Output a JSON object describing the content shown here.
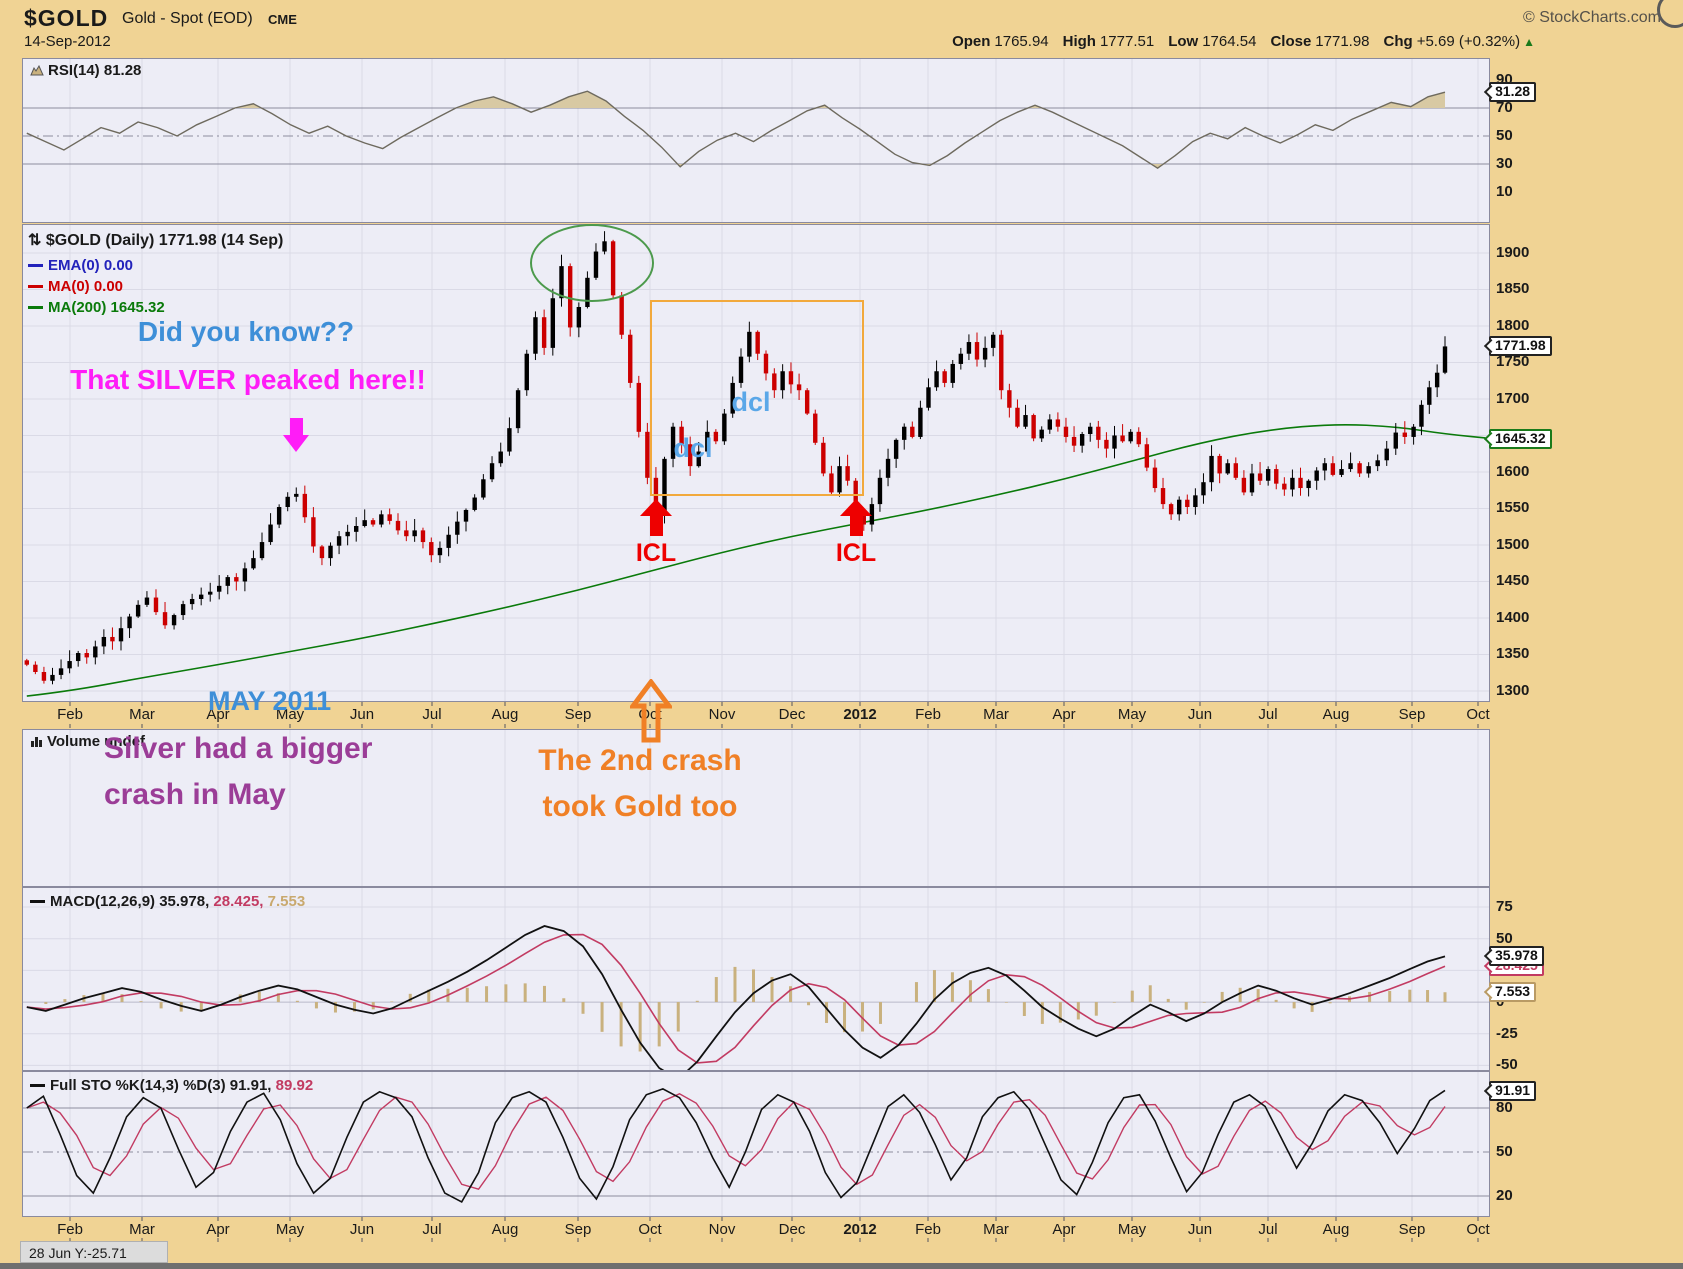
{
  "header": {
    "symbol": "$GOLD",
    "name": "Gold - Spot (EOD)",
    "exchange": "CME",
    "credit": "© StockCharts.com",
    "date": "14-Sep-2012",
    "quote": {
      "open_label": "Open",
      "open": "1765.94",
      "high_label": "High",
      "high": "1777.51",
      "low_label": "Low",
      "low": "1764.54",
      "close_label": "Close",
      "close": "1771.98",
      "chg_label": "Chg",
      "chg": "+5.69 (+0.32%)",
      "arrow": "▲"
    }
  },
  "x_axis": {
    "labels": [
      "Feb",
      "Mar",
      "Apr",
      "May",
      "Jun",
      "Jul",
      "Aug",
      "Sep",
      "Oct",
      "Nov",
      "Dec",
      "2012",
      "Feb",
      "Mar",
      "Apr",
      "May",
      "Jun",
      "Jul",
      "Aug",
      "Sep",
      "Oct"
    ],
    "bold_label": "2012"
  },
  "volume": {
    "label": "Volume undef"
  },
  "status_bar": {
    "text": "28 Jun Y:-25.71"
  },
  "annotations": {
    "did_you_know": "Did you know??",
    "silver_peaked": "That SILVER peaked here!!",
    "dcl": "dcl",
    "icl": "ICL",
    "may_2011": "MAY 2011",
    "silver_line1": "Silver had a bigger",
    "silver_line2": "crash in May",
    "crash_line1": "The 2nd crash",
    "crash_line2": "took Gold too"
  },
  "colors": {
    "page_bg": "#F0D394",
    "panel_bg": "#EDEDF6",
    "border": "#8A8A9E",
    "grid": "#DADAE6",
    "grid_strong": "#8D8D9E",
    "up": "#000000",
    "down": "#CC0000",
    "ma200": "#0A7A0A",
    "ema_blue": "#2222BB",
    "ma_red": "#CC0000",
    "rsi_line": "#6E6A5E",
    "rsi_fill": "#D8C9A3",
    "macd_line": "#111111",
    "macd_signal": "#C23B62",
    "macd_hist": "#C9B17E",
    "sto_k": "#111111",
    "sto_d": "#C23B62",
    "annotation_blue": "#3E8FD8",
    "annotation_magenta": "#FF1CF7",
    "annotation_purple": "#9B3D97",
    "annotation_orange": "#F08026",
    "annotation_red": "#EE0000",
    "box_orange": "#F2A93C",
    "ellipse_green": "#4C9A4C",
    "chg_green": "#1A7A1A"
  },
  "chart_data": [
    {
      "id": "rsi",
      "type": "line",
      "label": "RSI(14) 81.28",
      "ylim": [
        -12.1,
        105.7
      ],
      "x_range": [
        -0.6,
        19.5
      ],
      "gridlines": [
        {
          "v": 70,
          "style": "solid"
        },
        {
          "v": 50,
          "style": "dashdot"
        },
        {
          "v": 30,
          "style": "solid"
        }
      ],
      "axis_ticks": [
        90,
        70,
        50,
        30,
        10
      ],
      "overbought": 70,
      "oversold": 30,
      "callouts": [
        {
          "text": "81.28",
          "value": 81.28,
          "border": "#222222"
        }
      ],
      "values": [
        52,
        46,
        40,
        48,
        56,
        52,
        60,
        56,
        50,
        58,
        64,
        70,
        73,
        66,
        58,
        52,
        57,
        50,
        45,
        41,
        49,
        56,
        63,
        70,
        75,
        78,
        73,
        67,
        72,
        78,
        82,
        75,
        64,
        54,
        42,
        28,
        39,
        47,
        52,
        46,
        54,
        61,
        68,
        72,
        63,
        55,
        46,
        37,
        31,
        29,
        36,
        45,
        53,
        61,
        67,
        72,
        67,
        61,
        55,
        49,
        43,
        35,
        27,
        36,
        46,
        52,
        48,
        56,
        50,
        45,
        51,
        58,
        54,
        62,
        68,
        74,
        71,
        78,
        81.3
      ]
    },
    {
      "id": "price",
      "type": "candlestick",
      "title": "$GOLD (Daily) 1771.98 (14 Sep)",
      "legend": [
        {
          "text": "EMA(0) 0.00",
          "color": "#2222BB"
        },
        {
          "text": "MA(0) 0.00",
          "color": "#CC0000"
        },
        {
          "text": "MA(200) 1645.32",
          "color": "#0A7A0A"
        }
      ],
      "ylim": [
        1284.9,
        1939.7
      ],
      "x_range": [
        -0.6,
        19.5
      ],
      "grid_step": 50,
      "grid_min": 1300,
      "grid_max": 1900,
      "axis_ticks": [
        1900,
        1850,
        1800,
        1750,
        1700,
        1600,
        1550,
        1500,
        1450,
        1400,
        1350,
        1300
      ],
      "callouts": [
        {
          "text": "1771.98",
          "value": 1771.98,
          "border": "#222222",
          "bold": true
        },
        {
          "text": "1645.32",
          "value": 1645.32,
          "border": "#1A7A1A"
        }
      ],
      "closes": [
        1336,
        1326,
        1314,
        1322,
        1331,
        1341,
        1352,
        1346,
        1361,
        1374,
        1368,
        1386,
        1402,
        1418,
        1428,
        1408,
        1390,
        1404,
        1419,
        1426,
        1432,
        1436,
        1444,
        1456,
        1450,
        1468,
        1482,
        1504,
        1528,
        1552,
        1566,
        1570,
        1538,
        1498,
        1482,
        1499,
        1512,
        1518,
        1526,
        1534,
        1528,
        1542,
        1533,
        1520,
        1512,
        1520,
        1504,
        1486,
        1496,
        1514,
        1532,
        1548,
        1565,
        1590,
        1612,
        1628,
        1660,
        1712,
        1762,
        1812,
        1770,
        1838,
        1882,
        1798,
        1826,
        1866,
        1902,
        1916,
        1842,
        1788,
        1722,
        1655,
        1592,
        1540,
        1618,
        1662,
        1638,
        1608,
        1628,
        1655,
        1642,
        1680,
        1722,
        1758,
        1792,
        1762,
        1735,
        1712,
        1738,
        1720,
        1712,
        1680,
        1640,
        1598,
        1572,
        1608,
        1588,
        1544,
        1528,
        1556,
        1592,
        1618,
        1644,
        1662,
        1648,
        1688,
        1716,
        1738,
        1722,
        1748,
        1762,
        1778,
        1754,
        1770,
        1788,
        1712,
        1688,
        1662,
        1678,
        1646,
        1658,
        1672,
        1662,
        1648,
        1636,
        1652,
        1662,
        1644,
        1632,
        1650,
        1642,
        1655,
        1638,
        1606,
        1578,
        1556,
        1542,
        1562,
        1552,
        1568,
        1586,
        1622,
        1598,
        1612,
        1592,
        1572,
        1598,
        1588,
        1604,
        1584,
        1576,
        1592,
        1578,
        1588,
        1602,
        1612,
        1596,
        1604,
        1612,
        1598,
        1608,
        1616,
        1632,
        1654,
        1648,
        1662,
        1692,
        1716,
        1736,
        1772
      ],
      "ma200": [
        [
          -0.6,
          1293
        ],
        [
          0,
          1300
        ],
        [
          1,
          1318
        ],
        [
          2,
          1336
        ],
        [
          3,
          1354
        ],
        [
          4,
          1372
        ],
        [
          5,
          1392
        ],
        [
          6,
          1414
        ],
        [
          7,
          1438
        ],
        [
          8,
          1464
        ],
        [
          9,
          1490
        ],
        [
          10,
          1512
        ],
        [
          11,
          1530
        ],
        [
          12,
          1548
        ],
        [
          13,
          1568
        ],
        [
          14,
          1590
        ],
        [
          15,
          1615
        ],
        [
          16,
          1640
        ],
        [
          17,
          1658
        ],
        [
          18,
          1666
        ],
        [
          18.8,
          1662
        ],
        [
          19.5,
          1652
        ],
        [
          20.3,
          1645
        ]
      ]
    },
    {
      "id": "macd",
      "type": "line",
      "label_main": "MACD(12,26,9) 35.978,",
      "label_signal": "28.425,",
      "label_hist": "7.553",
      "ylim": [
        -54.4,
        90.8
      ],
      "x_range": [
        -0.6,
        19.5
      ],
      "gridlines": [
        {
          "v": 75,
          "style": "solid"
        },
        {
          "v": 50,
          "style": "solid"
        },
        {
          "v": 25,
          "style": "solid"
        },
        {
          "v": 0,
          "style": "solid"
        },
        {
          "v": -25,
          "style": "solid"
        },
        {
          "v": -50,
          "style": "solid"
        }
      ],
      "axis_ticks": [
        75,
        50,
        25,
        0,
        -25,
        -50
      ],
      "callouts": [
        {
          "text": "28.425",
          "value": 28.425,
          "border": "#C23B62",
          "color": "#C23B62",
          "behind": true
        },
        {
          "text": "35.978",
          "value": 35.978,
          "border": "#222222"
        },
        {
          "text": "7.553",
          "value": 7.553,
          "border": "#B99A64"
        }
      ],
      "values": [
        -4,
        -7,
        -2,
        3,
        7,
        11,
        8,
        2,
        -3,
        -7,
        -2,
        4,
        9,
        13,
        10,
        4,
        -2,
        -6,
        -9,
        -5,
        2,
        9,
        16,
        24,
        33,
        43,
        53,
        60,
        56,
        44,
        22,
        -6,
        -32,
        -52,
        -61,
        -47,
        -27,
        -8,
        7,
        17,
        22,
        12,
        -5,
        -22,
        -36,
        -44,
        -34,
        -17,
        2,
        15,
        23,
        27,
        21,
        9,
        -4,
        -13,
        -21,
        -27,
        -21,
        -11,
        -2,
        -8,
        -15,
        -9,
        0,
        7,
        13,
        9,
        3,
        -2,
        2,
        7,
        13,
        19,
        26,
        32,
        36
      ]
    },
    {
      "id": "sto",
      "type": "line",
      "label_main": "Full STO %K(14,3) %D(3) 91.91,",
      "label_signal": "89.92",
      "ylim": [
        5.7,
        105.2
      ],
      "x_range": [
        -0.6,
        19.5
      ],
      "gridlines": [
        {
          "v": 80,
          "style": "solid"
        },
        {
          "v": 50,
          "style": "dashdot"
        },
        {
          "v": 20,
          "style": "solid"
        }
      ],
      "axis_ticks": [
        80,
        50,
        20
      ],
      "callouts": [
        {
          "text": "91.91",
          "value": 91.91,
          "border": "#222222"
        }
      ],
      "values": [
        80,
        88,
        62,
        34,
        22,
        46,
        74,
        87,
        80,
        52,
        26,
        36,
        64,
        84,
        90,
        72,
        42,
        22,
        32,
        60,
        84,
        91,
        87,
        74,
        46,
        22,
        16,
        36,
        70,
        87,
        91,
        84,
        60,
        32,
        18,
        40,
        72,
        89,
        93,
        87,
        70,
        46,
        26,
        50,
        79,
        89,
        84,
        64,
        36,
        19,
        29,
        55,
        81,
        89,
        77,
        55,
        31,
        46,
        74,
        87,
        91,
        79,
        55,
        31,
        21,
        43,
        70,
        87,
        89,
        71,
        46,
        23,
        36,
        62,
        84,
        89,
        81,
        60,
        39,
        56,
        78,
        89,
        85,
        70,
        49,
        66,
        85,
        92
      ]
    }
  ]
}
